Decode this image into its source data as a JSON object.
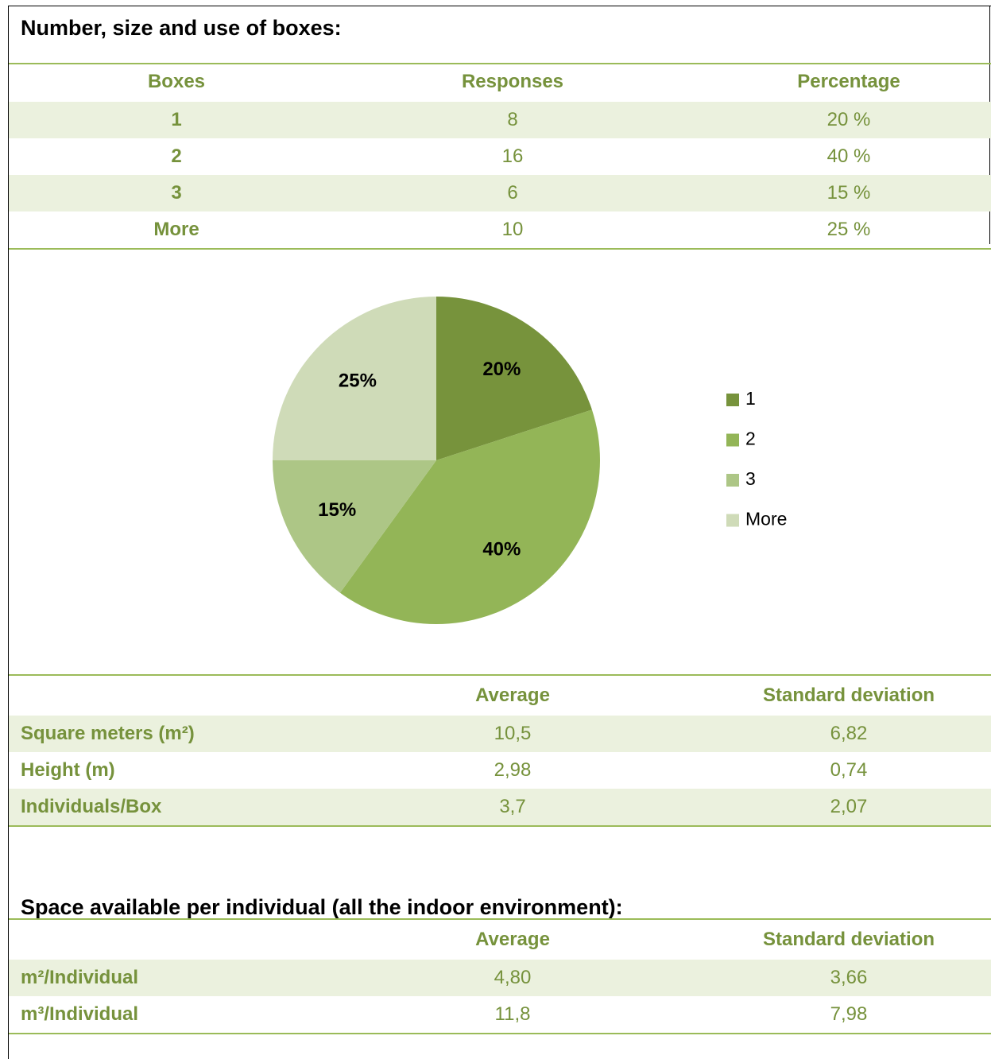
{
  "section1": {
    "title": "Number, size and use of boxes:",
    "table": {
      "header": [
        "Boxes",
        "Responses",
        "Percentage"
      ],
      "rows": [
        [
          "1",
          "8",
          "20 %"
        ],
        [
          "2",
          "16",
          "40 %"
        ],
        [
          "3",
          "6",
          "15 %"
        ],
        [
          "More",
          "10",
          "25 %"
        ]
      ]
    }
  },
  "chart_data": {
    "type": "pie",
    "categories": [
      "1",
      "2",
      "3",
      "More"
    ],
    "values": [
      20,
      40,
      15,
      25
    ],
    "value_labels": [
      "20%",
      "40%",
      "15%",
      "25%"
    ],
    "colors": [
      "#77933c",
      "#93b557",
      "#adc686",
      "#cfdbb8"
    ],
    "legend": "right"
  },
  "table2": {
    "header": [
      "Average",
      "Standard deviation"
    ],
    "rows": [
      [
        "Square meters (m²)",
        "10,5",
        "6,82"
      ],
      [
        "Height (m)",
        "2,98",
        "0,74"
      ],
      [
        "Individuals/Box",
        "3,7",
        "2,07"
      ]
    ]
  },
  "section2": {
    "title": "Space available per individual (all the indoor environment):",
    "table": {
      "header": [
        "Average",
        "Standard deviation"
      ],
      "rows": [
        [
          "m²/Individual",
          "4,80",
          "3,66"
        ],
        [
          "m³/Individual",
          "11,8",
          "7,98"
        ]
      ]
    }
  }
}
